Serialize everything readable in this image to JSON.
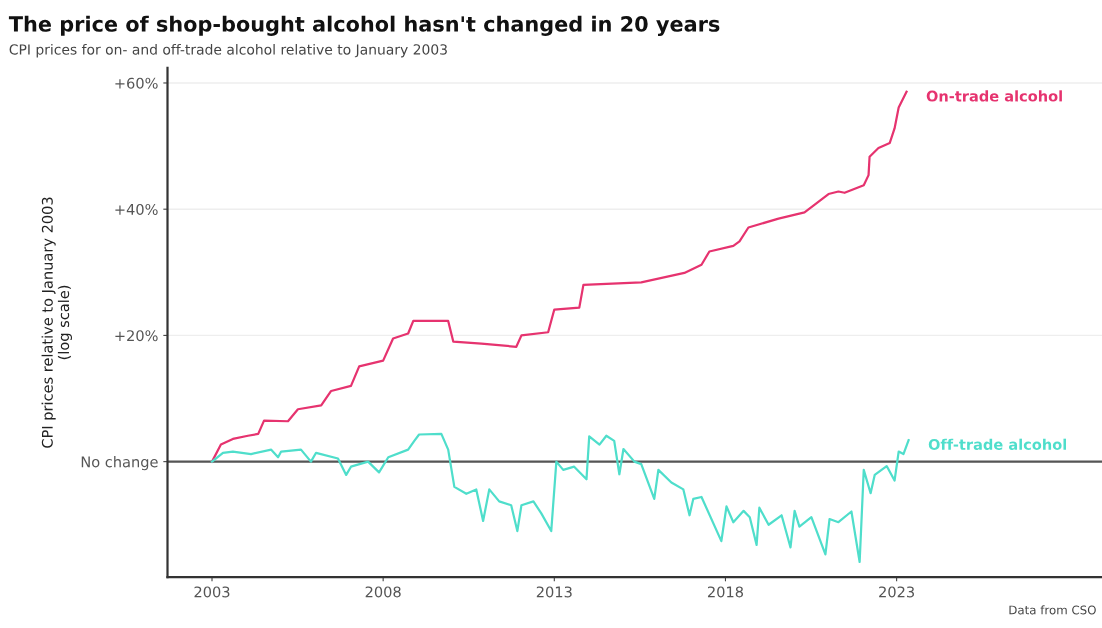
{
  "chart_data": {
    "type": "line",
    "title": "The price of shop-bought alcohol hasn't changed in 20 years",
    "subtitle": "CPI prices for on- and off-trade alcohol relative to January 2003",
    "ylabel": "CPI prices relative to January 2003\n(log scale)",
    "annotations": [
      "Data from CSO"
    ],
    "grid": "y",
    "legend": false,
    "xlim": [
      2001.7,
      2029
    ],
    "xticks": [
      2003,
      2008,
      2013,
      2018,
      2023
    ],
    "ylim": [
      -18.3,
      62.4
    ],
    "yticks": [
      {
        "value": 0,
        "label": "No change"
      },
      {
        "value": 20,
        "label": "+20%"
      },
      {
        "value": 40,
        "label": "+40%"
      },
      {
        "value": 60,
        "label": "+60%"
      }
    ],
    "ref_lines": [
      {
        "axis": "y",
        "value": 0,
        "label": null,
        "color": "#555555"
      }
    ],
    "series": [
      {
        "name": "On-trade alcohol",
        "color": "#e6336f",
        "x": [
          2003.0,
          2003.26,
          2003.61,
          2004.05,
          2004.35,
          2004.52,
          2005.22,
          2005.51,
          2006.19,
          2006.48,
          2007.06,
          2007.3,
          2008.0,
          2008.29,
          2008.73,
          2008.88,
          2009.9,
          2010.05,
          2010.87,
          2011.89,
          2012.04,
          2012.82,
          2013.0,
          2013.73,
          2013.85,
          2015.54,
          2016.8,
          2017.3,
          2017.53,
          2018.23,
          2018.41,
          2018.67,
          2019.55,
          2020.31,
          2021.01,
          2021.3,
          2021.48,
          2022.04,
          2022.18,
          2022.21,
          2022.47,
          2022.8,
          2022.94,
          2023.06,
          2023.29
        ],
        "values": [
          0.0,
          2.7,
          3.6,
          4.1,
          4.4,
          6.5,
          6.4,
          8.3,
          8.9,
          11.2,
          12.0,
          15.1,
          16.0,
          19.5,
          20.3,
          22.3,
          22.3,
          19.0,
          18.7,
          18.2,
          20.0,
          20.5,
          24.1,
          24.4,
          28.0,
          28.4,
          29.9,
          31.2,
          33.3,
          34.2,
          34.9,
          37.1,
          38.5,
          39.5,
          42.4,
          42.8,
          42.6,
          43.8,
          45.4,
          48.3,
          49.7,
          50.5,
          52.8,
          56.1,
          58.6
        ]
      },
      {
        "name": "Off-trade alcohol",
        "color": "#4fdecb",
        "x": [
          2003.0,
          2003.32,
          2003.61,
          2004.14,
          2004.73,
          2004.93,
          2005.02,
          2005.6,
          2005.89,
          2006.04,
          2006.68,
          2006.92,
          2007.06,
          2007.56,
          2007.88,
          2008.15,
          2008.73,
          2008.91,
          2009.05,
          2009.7,
          2009.9,
          2010.08,
          2010.43,
          2010.72,
          2010.92,
          2011.1,
          2011.39,
          2011.74,
          2011.92,
          2012.04,
          2012.39,
          2012.62,
          2012.91,
          2013.06,
          2013.26,
          2013.58,
          2013.94,
          2014.02,
          2014.32,
          2014.52,
          2014.75,
          2014.9,
          2015.02,
          2015.34,
          2015.54,
          2015.92,
          2016.04,
          2016.42,
          2016.77,
          2016.95,
          2017.06,
          2017.3,
          2017.88,
          2018.03,
          2018.23,
          2018.53,
          2018.71,
          2018.91,
          2018.99,
          2019.26,
          2019.64,
          2019.9,
          2020.02,
          2020.16,
          2020.51,
          2020.92,
          2021.04,
          2021.3,
          2021.68,
          2021.92,
          2022.04,
          2022.24,
          2022.36,
          2022.71,
          2022.94,
          2023.06,
          2023.2,
          2023.35
        ],
        "values": [
          0.0,
          1.4,
          1.6,
          1.2,
          1.9,
          0.7,
          1.6,
          1.9,
          0.0,
          1.4,
          0.5,
          -2.1,
          -0.8,
          0.0,
          -1.7,
          0.7,
          1.9,
          3.3,
          4.3,
          4.4,
          1.9,
          -4.0,
          -5.1,
          -4.4,
          -9.4,
          -4.4,
          -6.3,
          -6.9,
          -11.0,
          -6.9,
          -6.3,
          -8.2,
          -11.0,
          0.0,
          -1.3,
          -0.8,
          -2.8,
          4.0,
          2.7,
          4.1,
          3.3,
          -2.0,
          2.0,
          0.0,
          -0.4,
          -5.9,
          -1.3,
          -3.3,
          -4.4,
          -8.5,
          -5.9,
          -5.6,
          -12.6,
          -7.1,
          -9.6,
          -7.8,
          -8.8,
          -13.2,
          -7.3,
          -10.0,
          -8.5,
          -13.6,
          -7.8,
          -10.3,
          -8.8,
          -14.7,
          -9.1,
          -9.6,
          -7.9,
          -15.9,
          -1.3,
          -5.0,
          -2.1,
          -0.7,
          -3.0,
          1.6,
          1.2,
          3.4
        ]
      }
    ]
  }
}
